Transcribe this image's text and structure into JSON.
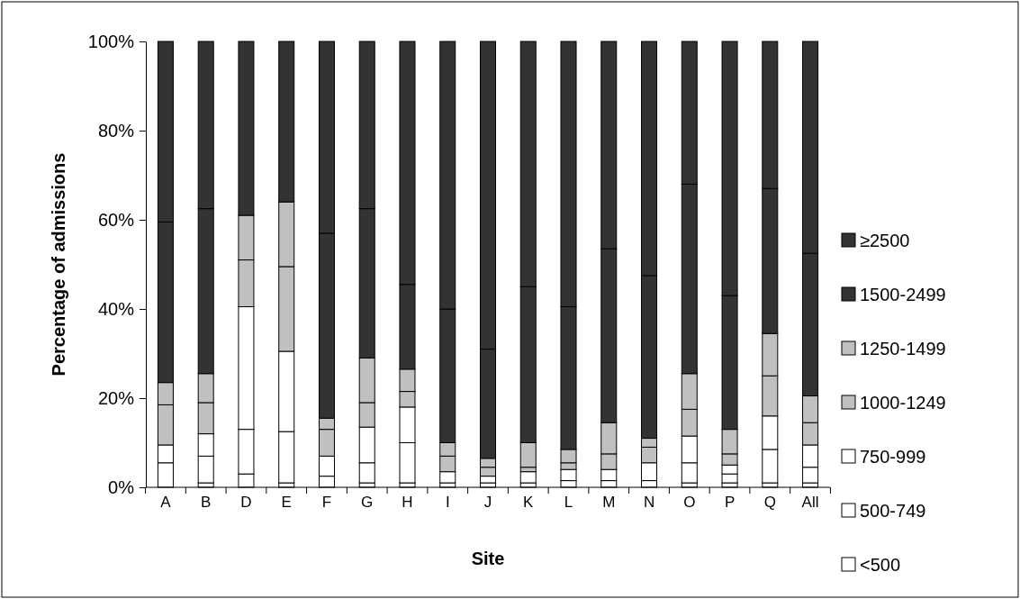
{
  "chart_data": {
    "type": "bar",
    "stacked": true,
    "xlabel": "Site",
    "ylabel": "Percentage of admissions",
    "categories": [
      "A",
      "B",
      "D",
      "E",
      "F",
      "G",
      "H",
      "I",
      "J",
      "K",
      "L",
      "M",
      "N",
      "O",
      "P",
      "Q",
      "All"
    ],
    "series": [
      {
        "name": "<500",
        "color": "#ffffff",
        "values": [
          0,
          1,
          3,
          1,
          0,
          1,
          1,
          0,
          0,
          0,
          0,
          0,
          0,
          1,
          1,
          1,
          1
        ]
      },
      {
        "name": "500-749",
        "color": "#ffffff",
        "values": [
          5.5,
          6,
          10,
          11.5,
          2.5,
          4.5,
          9,
          1,
          1,
          1,
          1.5,
          1.5,
          1.5,
          4.5,
          2,
          7.5,
          3.5
        ]
      },
      {
        "name": "750-999",
        "color": "#ffffff",
        "values": [
          4,
          5,
          27.5,
          18,
          4.5,
          8,
          8,
          2.5,
          1.5,
          2.5,
          2.5,
          2.5,
          4,
          6,
          2,
          7.5,
          5
        ]
      },
      {
        "name": "1000-1249",
        "color": "#c0c0c0",
        "values": [
          9,
          7,
          10.5,
          19,
          6,
          5.5,
          3.5,
          3.5,
          2,
          1,
          1.5,
          3.5,
          3.5,
          6,
          2.5,
          9,
          5
        ]
      },
      {
        "name": "1250-1499",
        "color": "#c0c0c0",
        "values": [
          5,
          6.5,
          10,
          14.5,
          2.5,
          10,
          5,
          3,
          2,
          5.5,
          3,
          7,
          2,
          8,
          5.5,
          9.5,
          6
        ]
      },
      {
        "name": "1500-2499",
        "color": "#333333",
        "values": [
          36,
          37,
          39,
          36,
          41.5,
          33.5,
          19,
          30,
          24.5,
          35,
          32,
          39,
          36.5,
          42.5,
          30,
          32.5,
          32
        ]
      },
      {
        "name": "≥2500",
        "color": "#333333",
        "values": [
          40.5,
          37.5,
          0,
          0,
          43,
          37.5,
          54.5,
          60,
          69,
          55,
          59.5,
          46.5,
          52.5,
          32,
          57,
          33,
          47.5
        ]
      }
    ],
    "ylim": [
      0,
      100
    ],
    "yticks": [
      {
        "value": 0,
        "label": "0%"
      },
      {
        "value": 20,
        "label": "20%"
      },
      {
        "value": 40,
        "label": "40%"
      },
      {
        "value": 60,
        "label": "60%"
      },
      {
        "value": 80,
        "label": "80%"
      },
      {
        "value": 100,
        "label": "100%"
      }
    ],
    "legend": "right"
  }
}
